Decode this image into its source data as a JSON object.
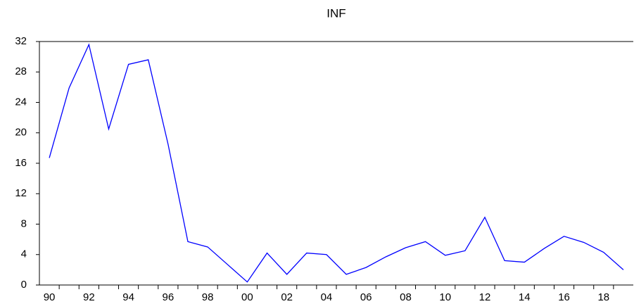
{
  "chart_data": {
    "type": "line",
    "title": "INF",
    "categories": [
      "90",
      null,
      "92",
      null,
      "94",
      null,
      "96",
      null,
      "98",
      null,
      "00",
      null,
      "02",
      null,
      "04",
      null,
      "06",
      null,
      "08",
      null,
      "10",
      null,
      "12",
      null,
      "14",
      null,
      "16",
      null,
      "18",
      null
    ],
    "series": [
      {
        "name": "INF",
        "color": "#0000ff",
        "values": [
          16.7,
          25.9,
          31.6,
          20.5,
          29.0,
          29.6,
          18.5,
          5.7,
          5.0,
          2.7,
          0.4,
          4.2,
          1.4,
          4.2,
          4.0,
          1.4,
          2.3,
          3.7,
          4.9,
          5.7,
          3.9,
          4.5,
          8.9,
          3.2,
          3.0,
          4.8,
          6.4,
          5.6,
          4.3,
          2.0
        ]
      }
    ],
    "ylim": [
      0,
      32
    ],
    "yticks": [
      0,
      4,
      8,
      12,
      16,
      20,
      24,
      28,
      32
    ],
    "grid": false
  }
}
